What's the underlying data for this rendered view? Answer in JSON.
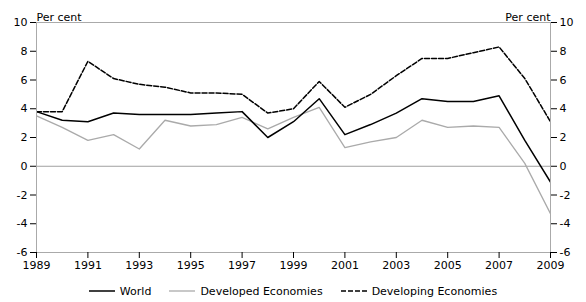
{
  "chart_data": {
    "type": "line",
    "x": [
      1989,
      1990,
      1991,
      1992,
      1993,
      1994,
      1995,
      1996,
      1997,
      1998,
      1999,
      2000,
      2001,
      2002,
      2003,
      2004,
      2005,
      2006,
      2007,
      2008,
      2009
    ],
    "series": [
      {
        "name": "World",
        "color": "#000000",
        "line_style": "solid",
        "values": [
          3.8,
          3.2,
          3.1,
          3.7,
          3.6,
          3.6,
          3.6,
          3.7,
          3.8,
          2.0,
          3.1,
          4.7,
          2.2,
          2.9,
          3.7,
          4.7,
          4.5,
          4.5,
          4.9,
          1.8,
          -1.1
        ]
      },
      {
        "name": "Developed Economies",
        "color": "#aaaaaa",
        "line_style": "solid",
        "values": [
          3.5,
          2.7,
          1.8,
          2.2,
          1.2,
          3.2,
          2.8,
          2.9,
          3.4,
          2.6,
          3.4,
          4.1,
          1.3,
          1.7,
          2.0,
          3.2,
          2.7,
          2.8,
          2.7,
          0.2,
          -3.3
        ]
      },
      {
        "name": "Developing Economies",
        "color": "#000000",
        "line_style": "dashed",
        "values": [
          3.8,
          3.8,
          7.3,
          6.1,
          5.7,
          5.5,
          5.1,
          5.1,
          5.0,
          3.7,
          4.0,
          5.9,
          4.1,
          5.0,
          6.3,
          7.5,
          7.5,
          7.9,
          8.3,
          6.1,
          3.1
        ]
      }
    ],
    "xlim": [
      1989,
      2009
    ],
    "xticks": [
      1989,
      1991,
      1993,
      1995,
      1997,
      1999,
      2001,
      2003,
      2005,
      2007,
      2009
    ],
    "ylim": [
      -6,
      10
    ],
    "yticks": [
      -6,
      -4,
      -2,
      0,
      2,
      4,
      6,
      8,
      10
    ],
    "y2lim": [
      -6,
      10
    ],
    "y2ticks": [
      -6,
      -4,
      -2,
      0,
      2,
      4,
      6,
      8,
      10
    ],
    "ylabel": "Per cent",
    "y2label": "Per cent",
    "grid": false,
    "legend": "bottom"
  }
}
